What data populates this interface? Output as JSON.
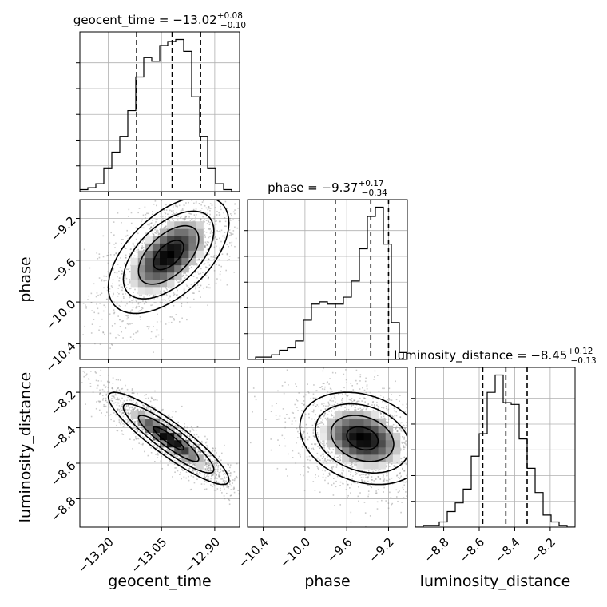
{
  "chart_data": {
    "type": "corner",
    "parameters": [
      "geocent_time",
      "phase",
      "luminosity_distance"
    ],
    "titles": [
      {
        "param": "geocent_time",
        "text": "geocent_time = −13.02",
        "plus": "+0.08",
        "minus": "−0.10"
      },
      {
        "param": "phase",
        "text": "phase = −9.37",
        "plus": "+0.17",
        "minus": "−0.34"
      },
      {
        "param": "luminosity_distance",
        "text": "luminosity_distance = −8.45",
        "plus": "+0.12",
        "minus": "−0.13"
      }
    ],
    "ranges": {
      "geocent_time": [
        -13.28,
        -12.83
      ],
      "phase": [
        -10.55,
        -9.02
      ],
      "luminosity_distance": [
        -8.96,
        -8.06
      ]
    },
    "ticks": {
      "geocent_time": [
        -13.2,
        -13.05,
        -12.9
      ],
      "phase": [
        -10.4,
        -10.0,
        -9.6,
        -9.2
      ],
      "luminosity_distance": [
        -8.8,
        -8.6,
        -8.4,
        -8.2
      ]
    },
    "tick_labels": {
      "geocent_time": [
        "−13.20",
        "−13.05",
        "−12.90"
      ],
      "phase": [
        "−10.4",
        "−10.0",
        "−9.6",
        "−9.2"
      ],
      "luminosity_distance": [
        "−8.8",
        "−8.6",
        "−8.4",
        "−8.2"
      ]
    },
    "quantiles": {
      "geocent_time": [
        -13.12,
        -13.02,
        -12.94
      ],
      "phase": [
        -9.71,
        -9.37,
        -9.2
      ],
      "luminosity_distance": [
        -8.58,
        -8.45,
        -8.33
      ]
    },
    "histograms": {
      "geocent_time": {
        "range": [
          -13.28,
          -12.83
        ],
        "counts": [
          1,
          2,
          4,
          12,
          20,
          28,
          41,
          58,
          68,
          66,
          74,
          76,
          77,
          71,
          48,
          28,
          12,
          4,
          1,
          0
        ]
      },
      "phase": {
        "range": [
          -10.55,
          -9.02
        ],
        "counts": [
          0,
          1,
          1,
          2,
          4,
          5,
          8,
          17,
          24,
          25,
          24,
          24,
          27,
          34,
          48,
          62,
          66,
          50,
          16,
          3
        ]
      },
      "luminosity_distance": {
        "range": [
          -8.96,
          -8.06
        ],
        "counts": [
          0,
          1,
          1,
          3,
          9,
          14,
          22,
          41,
          54,
          78,
          88,
          72,
          71,
          51,
          34,
          20,
          7,
          3,
          1,
          0
        ]
      }
    },
    "grid": true
  }
}
